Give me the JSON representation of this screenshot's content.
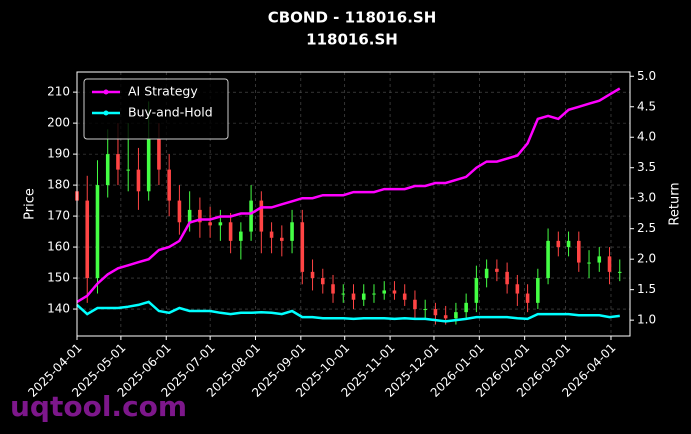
{
  "chart_data": {
    "type": "candlestick",
    "title": "CBOND - 118016.SH",
    "subtitle": "118016.SH",
    "watermark": "uqtool.com",
    "ylabel": "Price",
    "y2label": "Return",
    "grid": true,
    "legend": "upper left",
    "up_color": "#44ff44",
    "down_color": "#ff4444",
    "x": [
      "2025-04-01",
      "2025-04-08",
      "2025-04-15",
      "2025-04-22",
      "2025-04-29",
      "2025-05-06",
      "2025-05-13",
      "2025-05-20",
      "2025-05-27",
      "2025-06-03",
      "2025-06-10",
      "2025-06-17",
      "2025-06-24",
      "2025-07-01",
      "2025-07-08",
      "2025-07-15",
      "2025-07-22",
      "2025-07-29",
      "2025-08-05",
      "2025-08-12",
      "2025-08-19",
      "2025-08-26",
      "2025-09-02",
      "2025-09-09",
      "2025-09-16",
      "2025-09-23",
      "2025-09-30",
      "2025-10-07",
      "2025-10-14",
      "2025-10-21",
      "2025-10-28",
      "2025-11-04",
      "2025-11-11",
      "2025-11-18",
      "2025-11-25",
      "2025-12-02",
      "2025-12-09",
      "2025-12-16",
      "2025-12-23",
      "2025-12-30",
      "2026-01-06",
      "2026-01-13",
      "2026-01-20",
      "2026-01-27",
      "2026-02-03",
      "2026-02-10",
      "2026-02-17",
      "2026-02-24",
      "2026-03-03",
      "2026-03-10",
      "2026-03-17",
      "2026-03-24",
      "2026-03-31",
      "2026-04-07"
    ],
    "open": [
      178,
      175,
      150,
      180,
      190,
      185,
      185,
      178,
      195,
      185,
      175,
      168,
      172,
      168,
      167,
      168,
      162,
      165,
      175,
      165,
      163,
      162,
      168,
      152,
      150,
      148,
      145,
      145,
      143,
      145,
      145,
      146,
      145,
      143,
      140,
      140,
      138,
      137,
      139,
      142,
      150,
      153,
      152,
      148,
      145,
      142,
      150,
      162,
      160,
      162,
      155,
      155,
      157,
      152
    ],
    "high": [
      186,
      183,
      188,
      198,
      200,
      200,
      192,
      207,
      200,
      190,
      180,
      178,
      176,
      173,
      172,
      171,
      168,
      180,
      178,
      168,
      167,
      172,
      172,
      156,
      153,
      151,
      148,
      148,
      148,
      148,
      149,
      149,
      148,
      146,
      143,
      142,
      141,
      142,
      145,
      154,
      156,
      156,
      155,
      151,
      148,
      153,
      166,
      165,
      165,
      165,
      159,
      160,
      160,
      156
    ],
    "low": [
      167,
      142,
      145,
      176,
      180,
      178,
      172,
      175,
      180,
      170,
      164,
      165,
      163,
      163,
      162,
      158,
      156,
      162,
      158,
      158,
      157,
      158,
      148,
      146,
      145,
      142,
      142,
      140,
      141,
      142,
      143,
      143,
      141,
      137,
      137,
      135,
      135,
      135,
      137,
      139,
      147,
      149,
      145,
      141,
      139,
      140,
      148,
      157,
      157,
      152,
      150,
      152,
      148,
      149
    ],
    "close": [
      175,
      150,
      180,
      190,
      185,
      185,
      178,
      195,
      185,
      175,
      168,
      172,
      168,
      167,
      168,
      162,
      165,
      175,
      165,
      163,
      162,
      168,
      152,
      150,
      148,
      145,
      145,
      143,
      145,
      145,
      146,
      145,
      143,
      140,
      140,
      138,
      137,
      139,
      142,
      150,
      153,
      152,
      148,
      145,
      142,
      150,
      162,
      160,
      162,
      155,
      155,
      157,
      152,
      152
    ],
    "series": [
      {
        "name": "AI Strategy",
        "color": "#ff00ff",
        "axis": "y2",
        "values": [
          1.3,
          1.4,
          1.6,
          1.75,
          1.85,
          1.9,
          1.95,
          2.0,
          2.15,
          2.2,
          2.3,
          2.6,
          2.65,
          2.65,
          2.7,
          2.7,
          2.75,
          2.75,
          2.85,
          2.85,
          2.9,
          2.95,
          3.0,
          3.0,
          3.05,
          3.05,
          3.05,
          3.1,
          3.1,
          3.1,
          3.15,
          3.15,
          3.15,
          3.2,
          3.2,
          3.25,
          3.25,
          3.3,
          3.35,
          3.5,
          3.6,
          3.6,
          3.65,
          3.7,
          3.9,
          4.3,
          4.35,
          4.3,
          4.45,
          4.5,
          4.55,
          4.6,
          4.7,
          4.8
        ]
      },
      {
        "name": "Buy-and-Hold",
        "color": "#00ffff",
        "axis": "y2",
        "values": [
          1.25,
          1.1,
          1.2,
          1.2,
          1.2,
          1.22,
          1.25,
          1.3,
          1.15,
          1.12,
          1.2,
          1.15,
          1.15,
          1.15,
          1.12,
          1.1,
          1.12,
          1.12,
          1.13,
          1.12,
          1.1,
          1.15,
          1.05,
          1.05,
          1.03,
          1.03,
          1.03,
          1.02,
          1.03,
          1.03,
          1.03,
          1.02,
          1.03,
          1.02,
          1.02,
          1.0,
          0.98,
          1.0,
          1.02,
          1.05,
          1.05,
          1.05,
          1.05,
          1.03,
          1.02,
          1.1,
          1.1,
          1.1,
          1.1,
          1.08,
          1.08,
          1.08,
          1.05,
          1.07
        ]
      }
    ],
    "xlim": [
      "2025-04-01",
      "2026-04-14"
    ],
    "xticks": [
      "2025-04-01",
      "2025-05-01",
      "2025-06-01",
      "2025-07-01",
      "2025-08-01",
      "2025-09-01",
      "2025-10-01",
      "2025-11-01",
      "2025-12-01",
      "2026-01-01",
      "2026-02-01",
      "2026-03-01",
      "2026-04-01"
    ],
    "ylim": [
      131.3,
      216.5
    ],
    "yticks": [
      140,
      150,
      160,
      170,
      180,
      190,
      200,
      210
    ],
    "y2lim": [
      0.74,
      5.07
    ],
    "y2ticks": [
      {
        "value": 1,
        "label": "1.0"
      },
      1.5,
      {
        "value": 2,
        "label": "2.0"
      },
      2.5,
      {
        "value": 3,
        "label": "3.0"
      },
      3.5,
      {
        "value": 4,
        "label": "4.0"
      },
      4.5,
      {
        "value": 5,
        "label": "5.0"
      }
    ]
  }
}
